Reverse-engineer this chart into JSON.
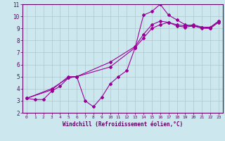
{
  "title": "",
  "xlabel": "Windchill (Refroidissement éolien,°C)",
  "bg_color": "#cce8ee",
  "line_color": "#990099",
  "grid_color": "#b0c8cc",
  "axis_label_color": "#660066",
  "tick_color": "#660066",
  "xlim": [
    -0.5,
    23.5
  ],
  "ylim": [
    2,
    11
  ],
  "xticks": [
    0,
    1,
    2,
    3,
    4,
    5,
    6,
    7,
    8,
    9,
    10,
    11,
    12,
    13,
    14,
    15,
    16,
    17,
    18,
    19,
    20,
    21,
    22,
    23
  ],
  "yticks": [
    2,
    3,
    4,
    5,
    6,
    7,
    8,
    9,
    10,
    11
  ],
  "line1_x": [
    0,
    1,
    2,
    3,
    4,
    5,
    6,
    7,
    8,
    9,
    10,
    11,
    12,
    13,
    14,
    15,
    16,
    17,
    18,
    19,
    20,
    21,
    22,
    23
  ],
  "line1_y": [
    3.2,
    3.1,
    3.1,
    3.8,
    4.2,
    4.9,
    5.0,
    3.0,
    2.5,
    3.3,
    4.4,
    5.0,
    5.5,
    7.4,
    10.1,
    10.4,
    11.0,
    10.1,
    9.7,
    9.3,
    9.2,
    9.1,
    9.0,
    9.6
  ],
  "line2_x": [
    0,
    3,
    5,
    6,
    10,
    13,
    14,
    15,
    16,
    17,
    18,
    19,
    20,
    21,
    22,
    23
  ],
  "line2_y": [
    3.2,
    3.9,
    5.0,
    5.0,
    6.2,
    7.5,
    8.5,
    9.3,
    9.6,
    9.5,
    9.3,
    9.2,
    9.3,
    9.1,
    9.1,
    9.6
  ],
  "line3_x": [
    0,
    3,
    5,
    6,
    10,
    13,
    14,
    15,
    16,
    17,
    18,
    19,
    20,
    21,
    22,
    23
  ],
  "line3_y": [
    3.2,
    4.0,
    4.9,
    5.0,
    5.8,
    7.4,
    8.2,
    9.0,
    9.3,
    9.5,
    9.2,
    9.1,
    9.2,
    9.0,
    9.0,
    9.5
  ]
}
